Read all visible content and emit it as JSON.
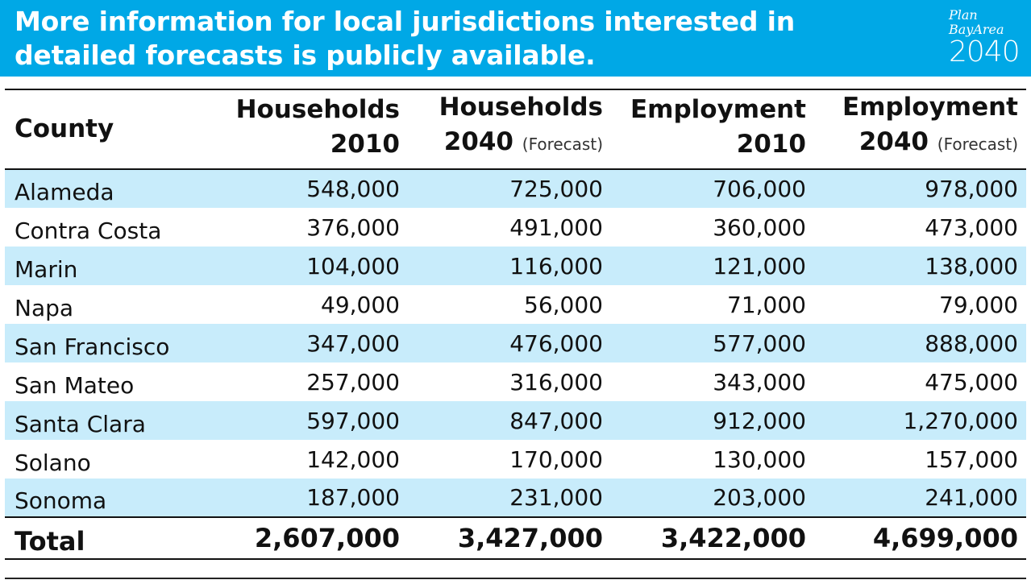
{
  "header": {
    "title": "More information for local jurisdictions interested in detailed forecasts is publicly available.",
    "background_color": "#00a8e6"
  },
  "logo": {
    "line1": "Plan",
    "line2": "BayArea",
    "line3": "2040"
  },
  "table": {
    "columns": [
      {
        "label": "County",
        "sub": ""
      },
      {
        "label_top": "Households",
        "label_bottom": "2010",
        "sub": ""
      },
      {
        "label_top": "Households",
        "label_bottom": "2040",
        "sub": "(Forecast)"
      },
      {
        "label_top": "Employment",
        "label_bottom": "2010",
        "sub": ""
      },
      {
        "label_top": "Employment",
        "label_bottom": "2040",
        "sub": "(Forecast)"
      }
    ],
    "rows": [
      {
        "county": "Alameda",
        "hh2010": "548,000",
        "hh2040": "725,000",
        "emp2010": "706,000",
        "emp2040": "978,000"
      },
      {
        "county": "Contra Costa",
        "hh2010": "376,000",
        "hh2040": "491,000",
        "emp2010": "360,000",
        "emp2040": "473,000"
      },
      {
        "county": "Marin",
        "hh2010": "104,000",
        "hh2040": "116,000",
        "emp2010": "121,000",
        "emp2040": "138,000"
      },
      {
        "county": "Napa",
        "hh2010": "49,000",
        "hh2040": "56,000",
        "emp2010": "71,000",
        "emp2040": "79,000"
      },
      {
        "county": "San Francisco",
        "hh2010": "347,000",
        "hh2040": "476,000",
        "emp2010": "577,000",
        "emp2040": "888,000"
      },
      {
        "county": "San Mateo",
        "hh2010": "257,000",
        "hh2040": "316,000",
        "emp2010": "343,000",
        "emp2040": "475,000"
      },
      {
        "county": "Santa Clara",
        "hh2010": "597,000",
        "hh2040": "847,000",
        "emp2010": "912,000",
        "emp2040": "1,270,000"
      },
      {
        "county": "Solano",
        "hh2010": "142,000",
        "hh2040": "170,000",
        "emp2010": "130,000",
        "emp2040": "157,000"
      },
      {
        "county": "Sonoma",
        "hh2010": "187,000",
        "hh2040": "231,000",
        "emp2010": "203,000",
        "emp2040": "241,000"
      }
    ],
    "total": {
      "county": "Total",
      "hh2010": "2,607,000",
      "hh2040": "3,427,000",
      "emp2010": "3,422,000",
      "emp2040": "4,699,000"
    },
    "shade_color": "#c8ecfb"
  }
}
